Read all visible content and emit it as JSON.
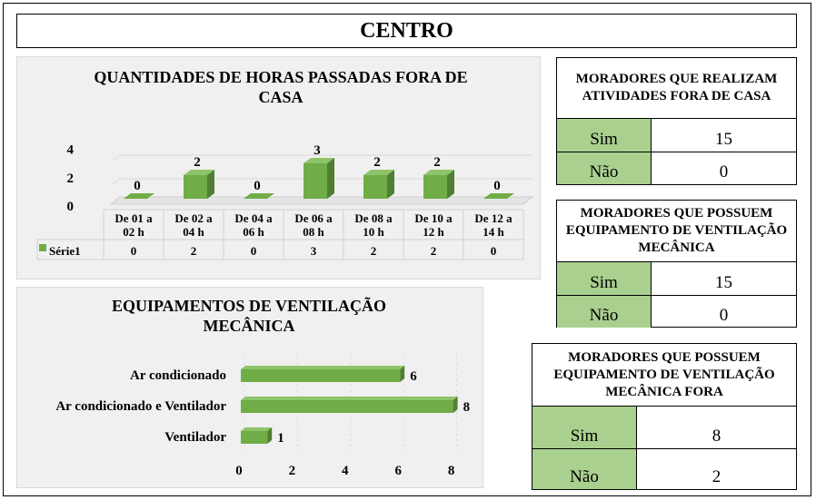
{
  "page_title": "CENTRO",
  "chart_data": [
    {
      "type": "bar",
      "title": "QUANTIDADES DE HORAS PASSADAS FORA DE CASA",
      "categories": [
        "De 01 a 02 h",
        "De 02 a 04 h",
        "De 04 a 06 h",
        "De 06 a 08 h",
        "De 08 a 10 h",
        "De 10 a 12 h",
        "De 12 a 14 h"
      ],
      "series": [
        {
          "name": "Série1",
          "values": [
            0,
            2,
            0,
            3,
            2,
            2,
            0
          ]
        }
      ],
      "yticks": [
        0,
        2,
        4
      ],
      "ylim": [
        0,
        4
      ],
      "data_table": true,
      "color": "#70ad47"
    },
    {
      "type": "bar",
      "orientation": "horizontal",
      "title": "EQUIPAMENTOS DE VENTILAÇÃO MECÂNICA",
      "categories": [
        "Ar condicionado",
        "Ar condicionado e Ventilador",
        "Ventilador"
      ],
      "values": [
        6,
        8,
        1
      ],
      "xticks": [
        0,
        2,
        4,
        6,
        8
      ],
      "xlim": [
        0,
        8
      ],
      "color": "#70ad47"
    }
  ],
  "tables": [
    {
      "title": "MORADORES QUE REALIZAM  ATIVIDADES FORA DE CASA",
      "rows": [
        {
          "label": "Sim",
          "value": "15"
        },
        {
          "label": "Não",
          "value": "0"
        }
      ]
    },
    {
      "title": "MORADORES QUE POSSUEM EQUIPAMENTO DE VENTILAÇÃO MECÂNICA",
      "rows": [
        {
          "label": "Sim",
          "value": "15"
        },
        {
          "label": "Não",
          "value": "0"
        }
      ]
    },
    {
      "title": "MORADORES QUE POSSUEM EQUIPAMENTO DE VENTILAÇÃO MECÂNICA FORA",
      "rows": [
        {
          "label": "Sim",
          "value": "8"
        },
        {
          "label": "Não",
          "value": "2"
        }
      ]
    }
  ]
}
